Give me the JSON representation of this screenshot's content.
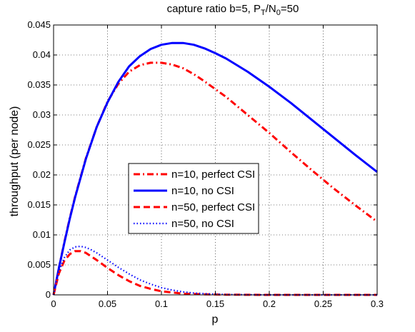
{
  "chart_data": {
    "type": "line",
    "title": {
      "prefix": "capture ratio b=5, P",
      "sub1": "T",
      "mid": "/N",
      "sub2": "0",
      "suffix": "=50"
    },
    "xlabel": "p",
    "ylabel": "throughput (per node)",
    "xlim": [
      0,
      0.3
    ],
    "ylim": [
      0,
      0.045
    ],
    "xticks": [
      0,
      0.05,
      0.1,
      0.15,
      0.2,
      0.25,
      0.3
    ],
    "xtick_labels": [
      "0",
      "0.05",
      "0.1",
      "0.15",
      "0.2",
      "0.25",
      "0.3"
    ],
    "yticks": [
      0,
      0.005,
      0.01,
      0.015,
      0.02,
      0.025,
      0.03,
      0.035,
      0.04,
      0.045
    ],
    "ytick_labels": [
      "0",
      "0.005",
      "0.01",
      "0.015",
      "0.02",
      "0.025",
      "0.03",
      "0.035",
      "0.04",
      "0.045"
    ],
    "grid": true,
    "legend_position": "center",
    "series": [
      {
        "name": "n=10, perfect CSI",
        "color": "#ff0000",
        "dash": "dashdot",
        "x": [
          0,
          0.005,
          0.01,
          0.015,
          0.02,
          0.03,
          0.04,
          0.05,
          0.06,
          0.07,
          0.08,
          0.09,
          0.1,
          0.11,
          0.12,
          0.13,
          0.14,
          0.15,
          0.16,
          0.18,
          0.2,
          0.22,
          0.24,
          0.26,
          0.28,
          0.3
        ],
        "y": [
          0,
          0.0045,
          0.0088,
          0.0128,
          0.0164,
          0.0228,
          0.028,
          0.0322,
          0.0352,
          0.0372,
          0.0383,
          0.0387,
          0.0387,
          0.0384,
          0.0378,
          0.0368,
          0.0356,
          0.0343,
          0.033,
          0.03,
          0.027,
          0.0238,
          0.0207,
          0.0177,
          0.0149,
          0.0122
        ]
      },
      {
        "name": "n=10, no CSI",
        "color": "#0000ff",
        "dash": "solid",
        "x": [
          0,
          0.005,
          0.01,
          0.015,
          0.02,
          0.03,
          0.04,
          0.05,
          0.06,
          0.07,
          0.08,
          0.09,
          0.1,
          0.11,
          0.12,
          0.13,
          0.14,
          0.15,
          0.16,
          0.18,
          0.2,
          0.22,
          0.24,
          0.26,
          0.28,
          0.3
        ],
        "y": [
          0,
          0.0045,
          0.0087,
          0.0127,
          0.0163,
          0.0227,
          0.028,
          0.0321,
          0.0355,
          0.0381,
          0.0398,
          0.041,
          0.0417,
          0.042,
          0.042,
          0.0417,
          0.0411,
          0.0403,
          0.0394,
          0.0372,
          0.0347,
          0.032,
          0.0291,
          0.0262,
          0.0233,
          0.0205
        ]
      },
      {
        "name": "n=50, perfect CSI",
        "color": "#ff0000",
        "dash": "dashed",
        "x": [
          0,
          0.005,
          0.01,
          0.015,
          0.02,
          0.025,
          0.03,
          0.035,
          0.04,
          0.05,
          0.06,
          0.07,
          0.08,
          0.09,
          0.1,
          0.12,
          0.14,
          0.16,
          0.2,
          0.25,
          0.3
        ],
        "y": [
          0,
          0.0036,
          0.0057,
          0.0068,
          0.0073,
          0.0073,
          0.007,
          0.0064,
          0.0058,
          0.0045,
          0.0033,
          0.0023,
          0.0015,
          0.001,
          0.0006,
          0.0002,
          0.0001,
          3e-05,
          0,
          0,
          0
        ]
      },
      {
        "name": "n=50, no CSI",
        "color": "#0000ff",
        "dash": "dotted",
        "x": [
          0,
          0.005,
          0.01,
          0.015,
          0.02,
          0.025,
          0.03,
          0.035,
          0.04,
          0.05,
          0.06,
          0.07,
          0.08,
          0.09,
          0.1,
          0.11,
          0.12,
          0.13,
          0.14,
          0.16,
          0.2,
          0.25,
          0.3
        ],
        "y": [
          0,
          0.0039,
          0.0062,
          0.0075,
          0.008,
          0.0081,
          0.0079,
          0.0075,
          0.007,
          0.0058,
          0.0046,
          0.0035,
          0.0025,
          0.0018,
          0.0012,
          0.0008,
          0.0005,
          0.0003,
          0.0002,
          5e-05,
          0,
          0,
          0
        ]
      }
    ]
  }
}
